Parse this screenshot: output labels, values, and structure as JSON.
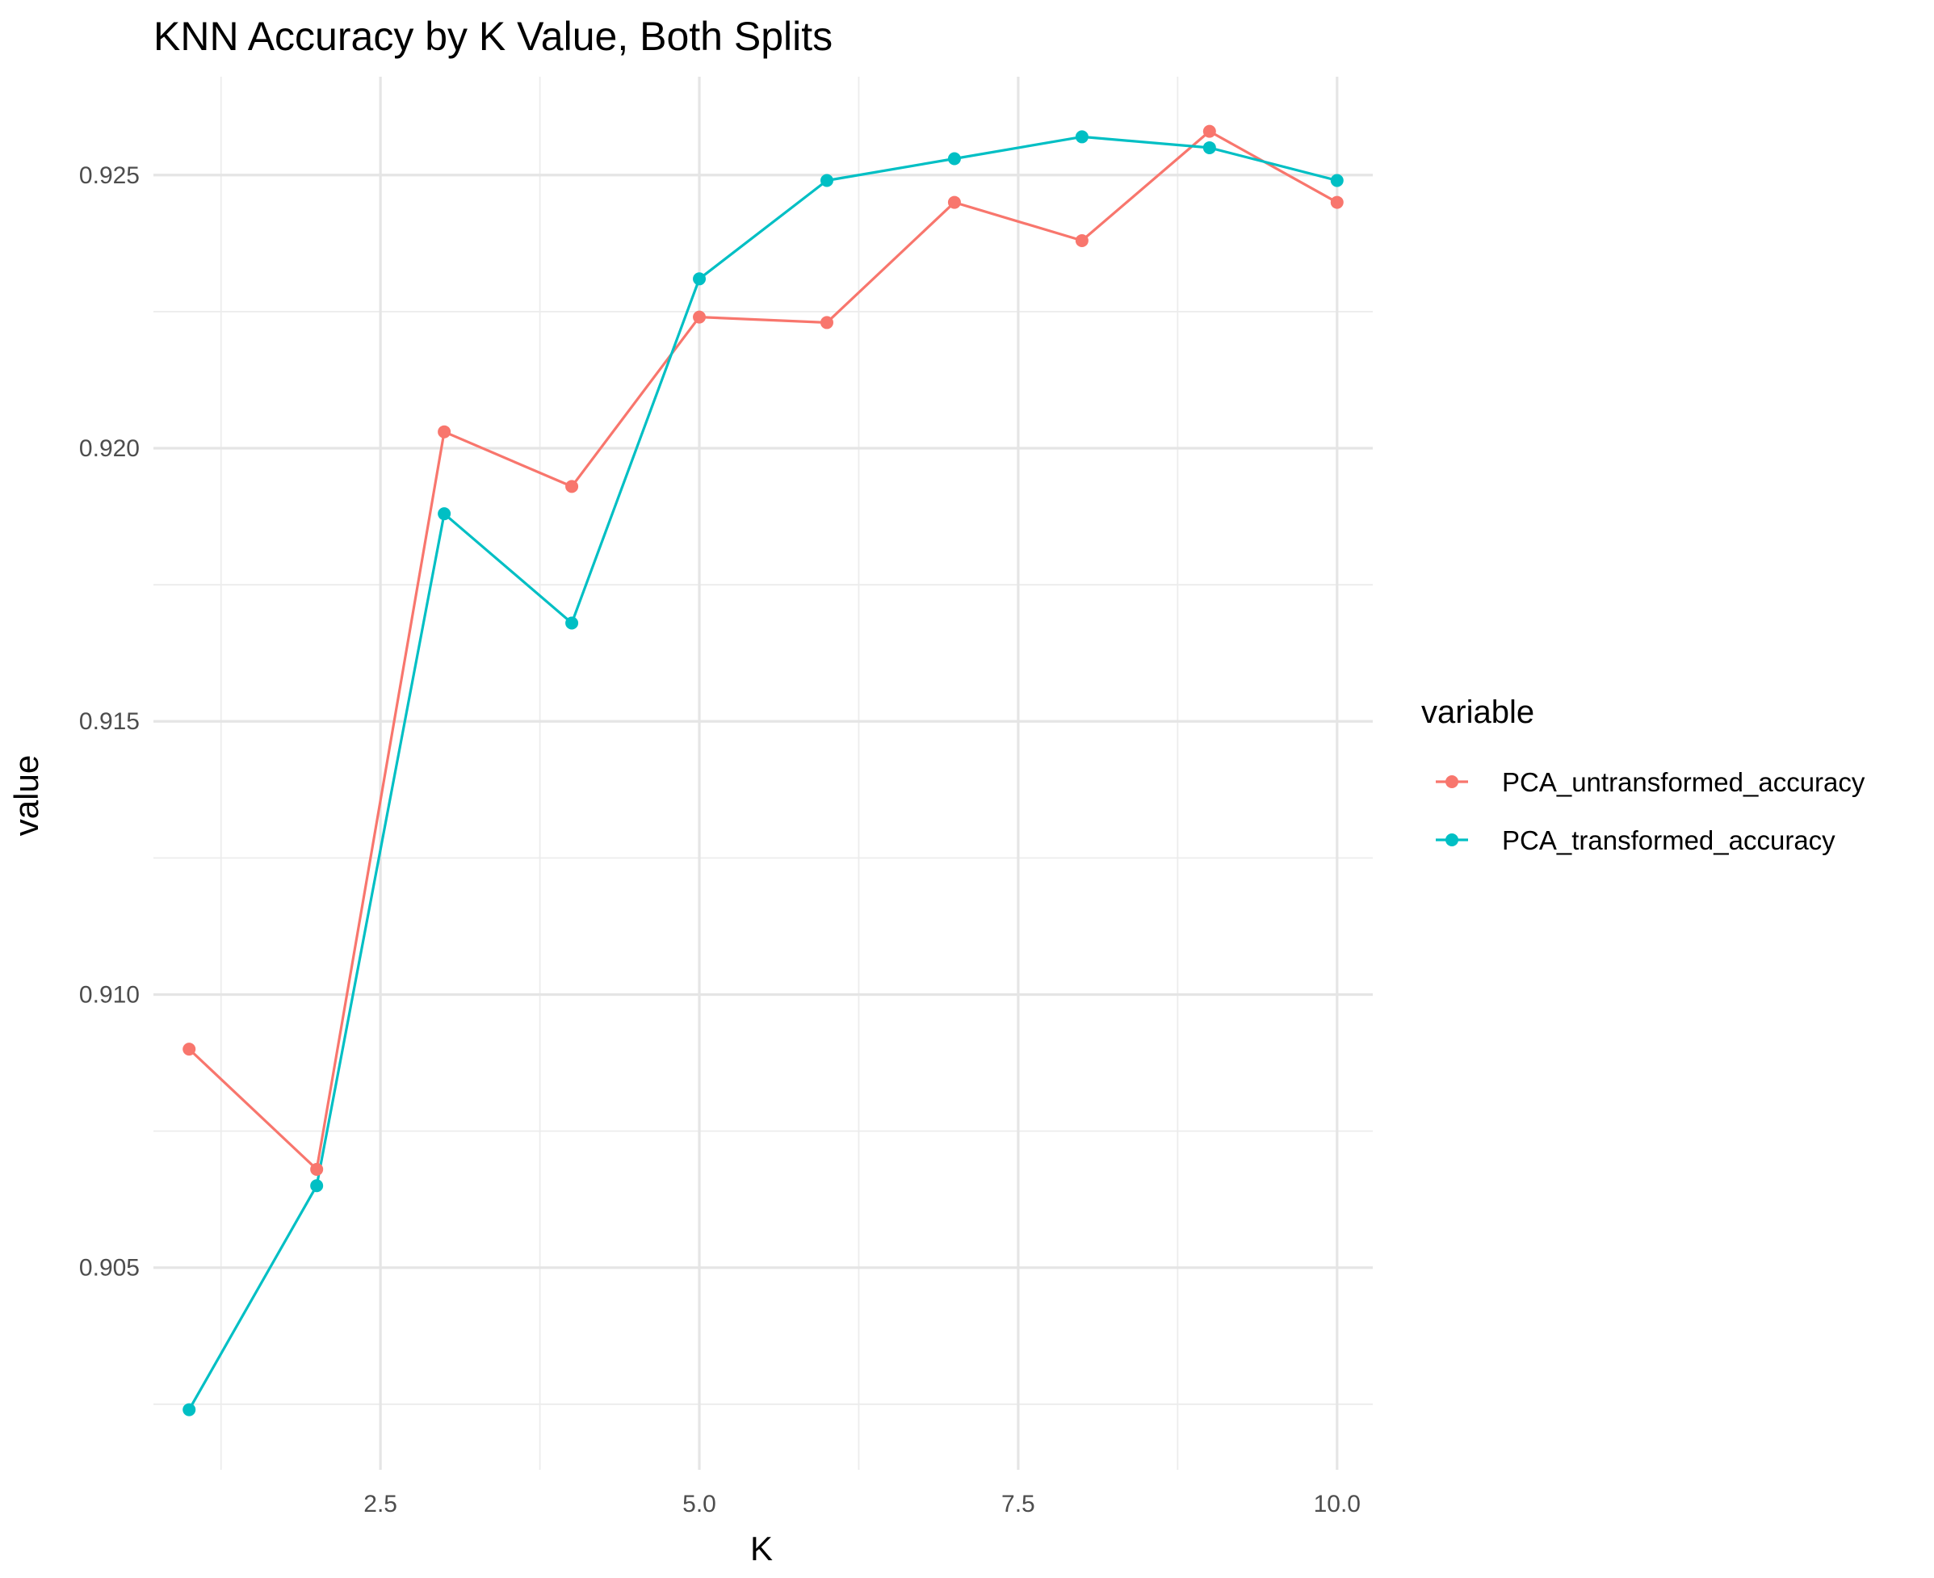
{
  "chart_data": {
    "type": "line",
    "title": "KNN Accuracy by K Value, Both Splits",
    "xlabel": "K",
    "ylabel": "value",
    "x": [
      1,
      2,
      3,
      4,
      5,
      6,
      7,
      8,
      9,
      10
    ],
    "xlim": [
      0.72,
      10.28
    ],
    "ylim": [
      0.9013,
      0.9268
    ],
    "x_ticks": [
      2.5,
      5.0,
      7.5,
      10.0
    ],
    "x_tick_labels": [
      "2.5",
      "5.0",
      "7.5",
      "10.0"
    ],
    "y_ticks": [
      0.905,
      0.91,
      0.915,
      0.92,
      0.925
    ],
    "y_tick_labels": [
      "0.905",
      "0.910",
      "0.915",
      "0.920",
      "0.925"
    ],
    "grid": true,
    "legend": {
      "title": "variable",
      "position": "right"
    },
    "series": [
      {
        "name": "PCA_untransformed_accuracy",
        "color": "#F8766D",
        "values": [
          0.909,
          0.9068,
          0.9203,
          0.9193,
          0.9224,
          0.9223,
          0.9245,
          0.9238,
          0.9258,
          0.9245
        ]
      },
      {
        "name": "PCA_transformed_accuracy",
        "color": "#00BFC4",
        "values": [
          0.9024,
          0.9065,
          0.9188,
          0.9168,
          0.9231,
          0.9249,
          0.9253,
          0.9257,
          0.9255,
          0.9249
        ]
      }
    ]
  }
}
